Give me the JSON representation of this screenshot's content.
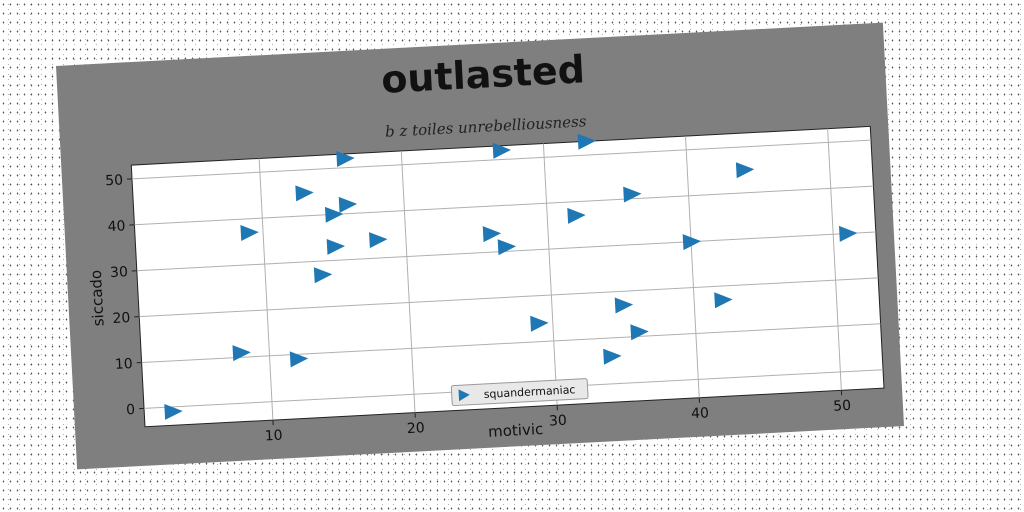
{
  "chart_data": {
    "type": "scatter",
    "title": "outlasted",
    "subtitle": "b z toiles unrebelliousness",
    "xlabel": "motivic",
    "ylabel": "siccado",
    "xlim": [
      1,
      53
    ],
    "ylim": [
      -4,
      53
    ],
    "xticks": [
      10,
      20,
      30,
      40,
      50
    ],
    "yticks": [
      0,
      10,
      20,
      30,
      40,
      50
    ],
    "grid": true,
    "legend_position": "bottom-center",
    "marker": "triangle-right",
    "colors": {
      "series": "#1f77b4",
      "frame": "#7f7f7f",
      "plot_bg": "#ffffff",
      "grid": "#b0b0b0"
    },
    "series": [
      {
        "name": "squandermaniac",
        "points": [
          {
            "x": 3,
            "y": -1
          },
          {
            "x": 8,
            "y": 11
          },
          {
            "x": 9,
            "y": 37
          },
          {
            "x": 12,
            "y": 9
          },
          {
            "x": 13,
            "y": 45
          },
          {
            "x": 14,
            "y": 27
          },
          {
            "x": 15,
            "y": 40
          },
          {
            "x": 15,
            "y": 33
          },
          {
            "x": 16,
            "y": 42
          },
          {
            "x": 16,
            "y": 52
          },
          {
            "x": 18,
            "y": 34
          },
          {
            "x": 26,
            "y": 34
          },
          {
            "x": 27,
            "y": 31
          },
          {
            "x": 27,
            "y": 52
          },
          {
            "x": 29,
            "y": 14
          },
          {
            "x": 32,
            "y": 37
          },
          {
            "x": 33,
            "y": 53
          },
          {
            "x": 34,
            "y": 6
          },
          {
            "x": 35,
            "y": 17
          },
          {
            "x": 36,
            "y": 11
          },
          {
            "x": 36,
            "y": 41
          },
          {
            "x": 40,
            "y": 30
          },
          {
            "x": 42,
            "y": 17
          },
          {
            "x": 44,
            "y": 45
          },
          {
            "x": 51,
            "y": 30
          }
        ]
      }
    ]
  }
}
